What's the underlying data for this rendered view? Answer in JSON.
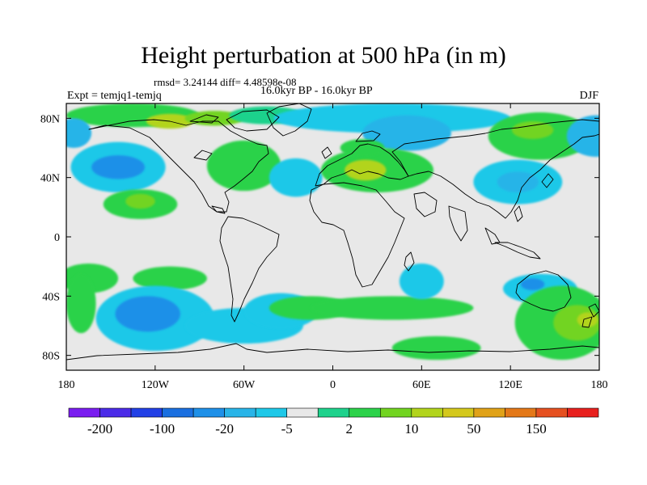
{
  "chart_data": {
    "type": "heatmap",
    "title": "Height perturbation at 500 hPa (in m)",
    "stats": "rmsd= 3.24144 diff= 4.48598e-08",
    "left_label": "Expt = temjq1-temjq",
    "center_label": "16.0kyr BP - 16.0kyr BP",
    "right_label": "DJF",
    "x_ticks": [
      "180",
      "120W",
      "60W",
      "0",
      "60E",
      "120E",
      "180"
    ],
    "x_tick_values": [
      -180,
      -120,
      -60,
      0,
      60,
      120,
      180
    ],
    "y_ticks": [
      "80N",
      "40N",
      "0",
      "40S",
      "80S"
    ],
    "y_tick_values": [
      80,
      40,
      0,
      -40,
      -80
    ],
    "xlim": [
      -180,
      180
    ],
    "ylim": [
      -90,
      90
    ],
    "colorbar_labels": [
      "-200",
      "-100",
      "-20",
      "-5",
      "2",
      "10",
      "50",
      "150"
    ],
    "colorbar_colors": [
      "#7a1df0",
      "#4b2be8",
      "#2240e6",
      "#1a6fe0",
      "#1e90e8",
      "#28b4e8",
      "#1ec8e8",
      "#e8e8e8",
      "#1ed28c",
      "#2cd24a",
      "#72d420",
      "#b2d41c",
      "#d4c81c",
      "#e0a218",
      "#e47818",
      "#e65020",
      "#e8201e"
    ],
    "anomaly_regions": [
      {
        "lon": -135,
        "lat": 82,
        "lon_r": 45,
        "lat_r": 8,
        "level": 9
      },
      {
        "lon": -110,
        "lat": 78,
        "lon_r": 16,
        "lat_r": 5,
        "level": 11
      },
      {
        "lon": -80,
        "lat": 80,
        "lon_r": 20,
        "lat_r": 5,
        "level": 10
      },
      {
        "lon": -45,
        "lat": 82,
        "lon_r": 25,
        "lat_r": 6,
        "level": 8
      },
      {
        "lon": 40,
        "lat": 80,
        "lon_r": 80,
        "lat_r": 10,
        "level": 6
      },
      {
        "lon": 50,
        "lat": 70,
        "lon_r": 30,
        "lat_r": 12,
        "level": 5
      },
      {
        "lon": 140,
        "lat": 68,
        "lon_r": 35,
        "lat_r": 16,
        "level": 9
      },
      {
        "lon": 135,
        "lat": 72,
        "lon_r": 14,
        "lat_r": 6,
        "level": 10
      },
      {
        "lon": 178,
        "lat": 68,
        "lon_r": 20,
        "lat_r": 14,
        "level": 5
      },
      {
        "lon": -175,
        "lat": 70,
        "lon_r": 12,
        "lat_r": 10,
        "level": 5
      },
      {
        "lon": -145,
        "lat": 47,
        "lon_r": 32,
        "lat_r": 17,
        "level": 6
      },
      {
        "lon": -145,
        "lat": 47,
        "lon_r": 18,
        "lat_r": 8,
        "level": 4
      },
      {
        "lon": -130,
        "lat": 22,
        "lon_r": 25,
        "lat_r": 10,
        "level": 9
      },
      {
        "lon": -130,
        "lat": 24,
        "lon_r": 10,
        "lat_r": 5,
        "level": 10
      },
      {
        "lon": -60,
        "lat": 48,
        "lon_r": 25,
        "lat_r": 17,
        "level": 9
      },
      {
        "lon": -25,
        "lat": 40,
        "lon_r": 18,
        "lat_r": 13,
        "level": 6
      },
      {
        "lon": 30,
        "lat": 45,
        "lon_r": 38,
        "lat_r": 15,
        "level": 9
      },
      {
        "lon": 22,
        "lat": 45,
        "lon_r": 14,
        "lat_r": 7,
        "level": 11
      },
      {
        "lon": 20,
        "lat": 60,
        "lon_r": 15,
        "lat_r": 6,
        "level": 9
      },
      {
        "lon": 125,
        "lat": 37,
        "lon_r": 30,
        "lat_r": 15,
        "level": 6
      },
      {
        "lon": 125,
        "lat": 37,
        "lon_r": 14,
        "lat_r": 7,
        "level": 5
      },
      {
        "lon": -165,
        "lat": -28,
        "lon_r": 20,
        "lat_r": 10,
        "level": 9
      },
      {
        "lon": -110,
        "lat": -28,
        "lon_r": 25,
        "lat_r": 8,
        "level": 9
      },
      {
        "lon": -120,
        "lat": -55,
        "lon_r": 40,
        "lat_r": 22,
        "level": 6
      },
      {
        "lon": -125,
        "lat": -52,
        "lon_r": 22,
        "lat_r": 12,
        "level": 4
      },
      {
        "lon": -60,
        "lat": -60,
        "lon_r": 40,
        "lat_r": 12,
        "level": 6
      },
      {
        "lon": -35,
        "lat": -50,
        "lon_r": 25,
        "lat_r": 12,
        "level": 6
      },
      {
        "lon": -15,
        "lat": -48,
        "lon_r": 28,
        "lat_r": 8,
        "level": 9
      },
      {
        "lon": 40,
        "lat": -48,
        "lon_r": 55,
        "lat_r": 8,
        "level": 9
      },
      {
        "lon": 70,
        "lat": -75,
        "lon_r": 30,
        "lat_r": 8,
        "level": 9
      },
      {
        "lon": 60,
        "lat": -30,
        "lon_r": 15,
        "lat_r": 12,
        "level": 6
      },
      {
        "lon": 140,
        "lat": -35,
        "lon_r": 25,
        "lat_r": 10,
        "level": 6
      },
      {
        "lon": 135,
        "lat": -32,
        "lon_r": 8,
        "lat_r": 4,
        "level": 4
      },
      {
        "lon": 155,
        "lat": -58,
        "lon_r": 32,
        "lat_r": 25,
        "level": 9
      },
      {
        "lon": 165,
        "lat": -58,
        "lon_r": 16,
        "lat_r": 12,
        "level": 10
      },
      {
        "lon": 172,
        "lat": -56,
        "lon_r": 7,
        "lat_r": 5,
        "level": 11
      },
      {
        "lon": -170,
        "lat": -45,
        "lon_r": 10,
        "lat_r": 20,
        "level": 9
      }
    ]
  }
}
